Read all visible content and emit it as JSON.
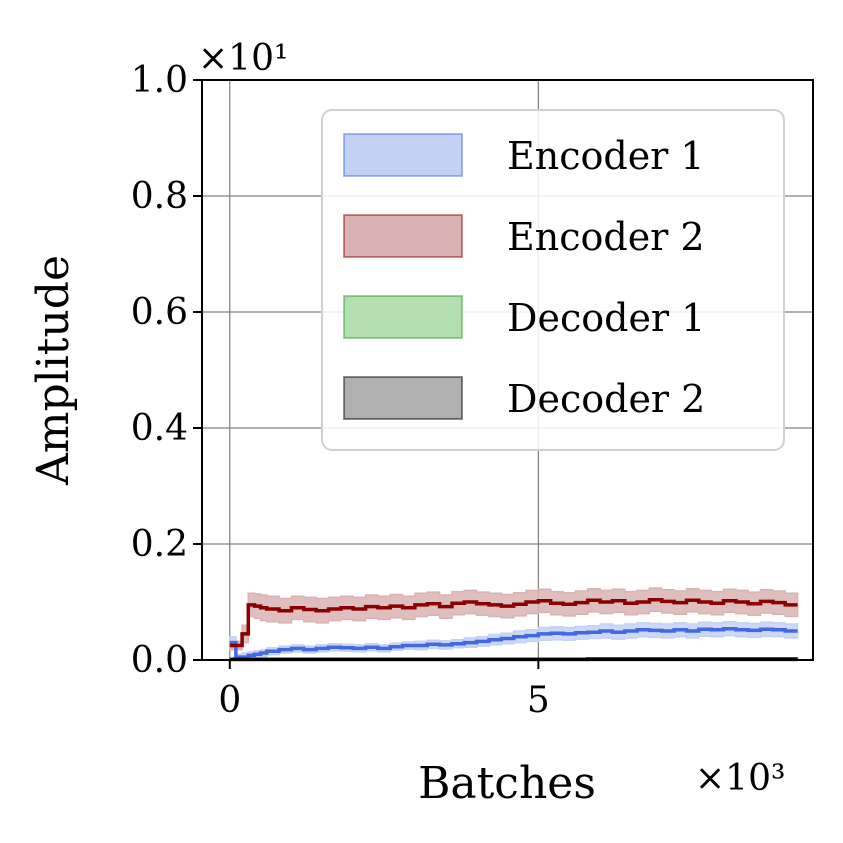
{
  "chart_data": {
    "type": "line",
    "title": "",
    "xlabel": "Batches",
    "ylabel": "Amplitude",
    "x_scale_label": "×10³",
    "y_scale_label": "×10¹",
    "xlim": [
      -0.45,
      9.45
    ],
    "ylim": [
      0.0,
      1.0
    ],
    "xticks": [
      0,
      5
    ],
    "xtick_labels": [
      "0",
      "5"
    ],
    "yticks": [
      0.0,
      0.2,
      0.4,
      0.6,
      0.8,
      1.0
    ],
    "ytick_labels": [
      "0.0",
      "0.2",
      "0.4",
      "0.6",
      "0.8",
      "1.0"
    ],
    "grid": true,
    "legend_position": "top-right",
    "x": [
      0.0,
      0.1,
      0.2,
      0.3,
      0.4,
      0.5,
      0.6,
      0.8,
      1.0,
      1.2,
      1.4,
      1.6,
      1.8,
      2.0,
      2.2,
      2.4,
      2.6,
      2.8,
      3.0,
      3.2,
      3.4,
      3.6,
      3.8,
      4.0,
      4.2,
      4.4,
      4.6,
      4.8,
      5.0,
      5.2,
      5.4,
      5.6,
      5.8,
      6.0,
      6.2,
      6.4,
      6.6,
      6.8,
      7.0,
      7.2,
      7.4,
      7.6,
      7.8,
      8.0,
      8.2,
      8.4,
      8.6,
      8.8,
      9.0
    ],
    "series": [
      {
        "name": "Encoder 1",
        "color": "#4169e1",
        "fill": "#c3d1f4",
        "values": [
          0.03,
          0.005,
          0.005,
          0.008,
          0.01,
          0.012,
          0.015,
          0.018,
          0.02,
          0.018,
          0.02,
          0.022,
          0.021,
          0.02,
          0.022,
          0.02,
          0.023,
          0.025,
          0.025,
          0.027,
          0.026,
          0.028,
          0.03,
          0.032,
          0.035,
          0.037,
          0.04,
          0.042,
          0.045,
          0.046,
          0.045,
          0.047,
          0.048,
          0.05,
          0.048,
          0.05,
          0.052,
          0.051,
          0.05,
          0.052,
          0.05,
          0.053,
          0.052,
          0.054,
          0.052,
          0.051,
          0.053,
          0.052,
          0.05
        ],
        "lower": [
          0.02,
          0.0,
          0.0,
          0.002,
          0.004,
          0.006,
          0.009,
          0.012,
          0.014,
          0.012,
          0.014,
          0.016,
          0.015,
          0.014,
          0.016,
          0.014,
          0.017,
          0.019,
          0.018,
          0.02,
          0.019,
          0.021,
          0.022,
          0.024,
          0.026,
          0.028,
          0.03,
          0.032,
          0.034,
          0.035,
          0.034,
          0.036,
          0.037,
          0.038,
          0.036,
          0.038,
          0.04,
          0.039,
          0.038,
          0.04,
          0.038,
          0.041,
          0.04,
          0.042,
          0.04,
          0.039,
          0.041,
          0.04,
          0.038
        ],
        "upper": [
          0.04,
          0.01,
          0.012,
          0.014,
          0.016,
          0.018,
          0.021,
          0.024,
          0.026,
          0.024,
          0.026,
          0.028,
          0.027,
          0.026,
          0.028,
          0.026,
          0.029,
          0.031,
          0.032,
          0.034,
          0.033,
          0.035,
          0.038,
          0.04,
          0.044,
          0.046,
          0.05,
          0.052,
          0.056,
          0.057,
          0.056,
          0.058,
          0.059,
          0.062,
          0.06,
          0.062,
          0.064,
          0.063,
          0.062,
          0.064,
          0.062,
          0.065,
          0.064,
          0.066,
          0.064,
          0.063,
          0.065,
          0.064,
          0.062
        ]
      },
      {
        "name": "Encoder 2",
        "color": "#8b0000",
        "fill": "#d9b3b3",
        "values": [
          0.025,
          0.025,
          0.045,
          0.095,
          0.093,
          0.09,
          0.088,
          0.085,
          0.09,
          0.087,
          0.085,
          0.088,
          0.09,
          0.088,
          0.092,
          0.09,
          0.093,
          0.09,
          0.095,
          0.097,
          0.092,
          0.098,
          0.1,
          0.097,
          0.095,
          0.093,
          0.096,
          0.1,
          0.102,
          0.098,
          0.096,
          0.099,
          0.103,
          0.1,
          0.102,
          0.098,
          0.1,
          0.104,
          0.101,
          0.099,
          0.103,
          0.1,
          0.098,
          0.102,
          0.1,
          0.097,
          0.101,
          0.099,
          0.095
        ],
        "lower": [
          0.018,
          0.018,
          0.03,
          0.075,
          0.072,
          0.068,
          0.066,
          0.064,
          0.07,
          0.066,
          0.064,
          0.068,
          0.07,
          0.068,
          0.072,
          0.07,
          0.073,
          0.07,
          0.075,
          0.077,
          0.072,
          0.078,
          0.08,
          0.077,
          0.075,
          0.073,
          0.076,
          0.08,
          0.082,
          0.078,
          0.076,
          0.079,
          0.083,
          0.08,
          0.082,
          0.078,
          0.08,
          0.084,
          0.081,
          0.079,
          0.083,
          0.08,
          0.078,
          0.082,
          0.08,
          0.077,
          0.081,
          0.079,
          0.075
        ],
        "upper": [
          0.032,
          0.032,
          0.06,
          0.115,
          0.114,
          0.112,
          0.11,
          0.106,
          0.11,
          0.108,
          0.106,
          0.108,
          0.11,
          0.108,
          0.112,
          0.11,
          0.113,
          0.11,
          0.115,
          0.117,
          0.112,
          0.118,
          0.12,
          0.117,
          0.115,
          0.113,
          0.116,
          0.12,
          0.122,
          0.118,
          0.116,
          0.119,
          0.123,
          0.12,
          0.122,
          0.118,
          0.12,
          0.124,
          0.121,
          0.119,
          0.123,
          0.12,
          0.118,
          0.122,
          0.12,
          0.117,
          0.121,
          0.119,
          0.115
        ]
      },
      {
        "name": "Decoder 1",
        "color": "#2ca02c",
        "fill": "#b2deb0",
        "values": [
          0.001,
          0.001,
          0.001,
          0.001,
          0.001,
          0.001,
          0.001,
          0.001,
          0.001,
          0.001,
          0.001,
          0.001,
          0.001,
          0.001,
          0.001,
          0.001,
          0.001,
          0.001,
          0.001,
          0.001,
          0.001,
          0.001,
          0.001,
          0.001,
          0.001,
          0.001,
          0.001,
          0.001,
          0.001,
          0.001,
          0.001,
          0.001,
          0.002,
          0.002,
          0.002,
          0.002,
          0.002,
          0.002,
          0.002,
          0.002,
          0.002,
          0.002,
          0.002,
          0.002,
          0.002,
          0.002,
          0.002,
          0.002,
          0.002
        ],
        "lower": [
          0.0,
          0.0,
          0.0,
          0.0,
          0.0,
          0.0,
          0.0,
          0.0,
          0.0,
          0.0,
          0.0,
          0.0,
          0.0,
          0.0,
          0.0,
          0.0,
          0.0,
          0.0,
          0.0,
          0.0,
          0.0,
          0.0,
          0.0,
          0.0,
          0.0,
          0.0,
          0.0,
          0.0,
          0.0,
          0.0,
          0.0,
          0.0,
          0.0,
          0.0,
          0.0,
          0.0,
          0.0,
          0.0,
          0.0,
          0.0,
          0.0,
          0.0,
          0.0,
          0.0,
          0.0,
          0.0,
          0.0,
          0.0,
          0.0
        ],
        "upper": [
          0.002,
          0.002,
          0.002,
          0.002,
          0.002,
          0.002,
          0.002,
          0.002,
          0.002,
          0.002,
          0.002,
          0.002,
          0.002,
          0.002,
          0.002,
          0.002,
          0.002,
          0.002,
          0.002,
          0.002,
          0.002,
          0.002,
          0.002,
          0.002,
          0.002,
          0.002,
          0.002,
          0.002,
          0.002,
          0.002,
          0.002,
          0.002,
          0.004,
          0.004,
          0.004,
          0.004,
          0.004,
          0.004,
          0.004,
          0.004,
          0.004,
          0.004,
          0.004,
          0.004,
          0.004,
          0.004,
          0.004,
          0.004,
          0.004
        ]
      },
      {
        "name": "Decoder 2",
        "color": "#000000",
        "fill": "#b0b0b0",
        "values": [
          0.001,
          0.001,
          0.001,
          0.001,
          0.001,
          0.001,
          0.001,
          0.001,
          0.001,
          0.001,
          0.001,
          0.001,
          0.001,
          0.001,
          0.001,
          0.001,
          0.001,
          0.001,
          0.001,
          0.001,
          0.001,
          0.001,
          0.001,
          0.001,
          0.001,
          0.001,
          0.001,
          0.001,
          0.001,
          0.001,
          0.001,
          0.001,
          0.001,
          0.001,
          0.001,
          0.001,
          0.001,
          0.001,
          0.001,
          0.001,
          0.001,
          0.001,
          0.001,
          0.001,
          0.001,
          0.001,
          0.001,
          0.001,
          0.001
        ],
        "lower": [
          0.0,
          0.0,
          0.0,
          0.0,
          0.0,
          0.0,
          0.0,
          0.0,
          0.0,
          0.0,
          0.0,
          0.0,
          0.0,
          0.0,
          0.0,
          0.0,
          0.0,
          0.0,
          0.0,
          0.0,
          0.0,
          0.0,
          0.0,
          0.0,
          0.0,
          0.0,
          0.0,
          0.0,
          0.0,
          0.0,
          0.0,
          0.0,
          0.0,
          0.0,
          0.0,
          0.0,
          0.0,
          0.0,
          0.0,
          0.0,
          0.0,
          0.0,
          0.0,
          0.0,
          0.0,
          0.0,
          0.0,
          0.0,
          0.0
        ],
        "upper": [
          0.002,
          0.002,
          0.002,
          0.002,
          0.002,
          0.002,
          0.002,
          0.002,
          0.002,
          0.002,
          0.002,
          0.002,
          0.002,
          0.002,
          0.002,
          0.002,
          0.002,
          0.002,
          0.002,
          0.002,
          0.002,
          0.002,
          0.002,
          0.002,
          0.002,
          0.002,
          0.002,
          0.002,
          0.002,
          0.002,
          0.002,
          0.002,
          0.002,
          0.002,
          0.002,
          0.002,
          0.002,
          0.002,
          0.002,
          0.002,
          0.002,
          0.002,
          0.002,
          0.002,
          0.002,
          0.002,
          0.002,
          0.002,
          0.002
        ]
      }
    ]
  }
}
